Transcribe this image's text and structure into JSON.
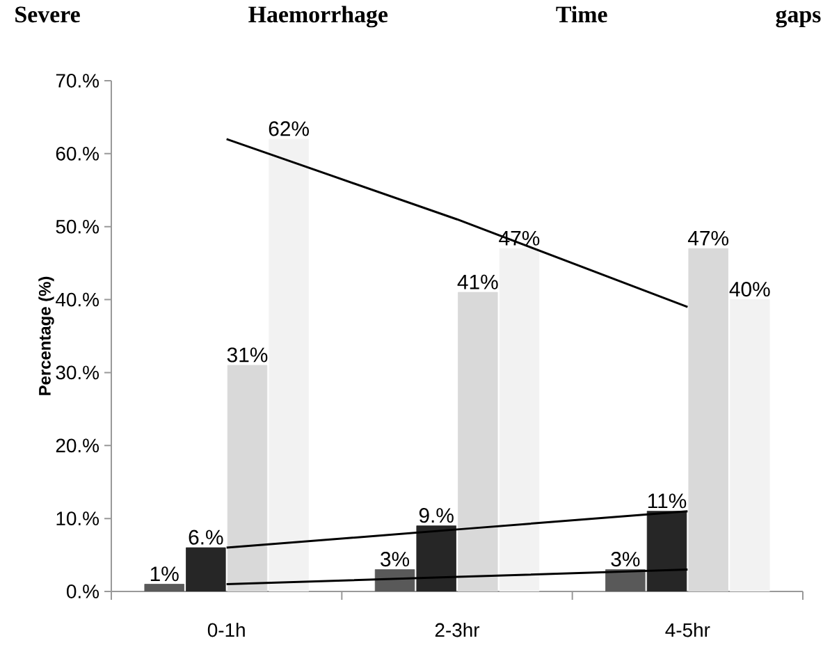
{
  "chart_data": {
    "type": "bar",
    "title": "Severe Haemorrhage Time gaps",
    "ylabel": "Percentage (%)",
    "categories": [
      "0-1h",
      "2-3hr",
      "4-5hr"
    ],
    "series": [
      {
        "color": "#595959",
        "values": [
          1,
          3,
          3
        ],
        "value_labels": [
          "1%",
          "3%",
          "3%"
        ]
      },
      {
        "color": "#262626",
        "values": [
          6,
          9,
          11
        ],
        "value_labels": [
          "6.%",
          "9.%",
          "11%"
        ]
      },
      {
        "color": "#d9d9d9",
        "values": [
          31,
          41,
          47
        ],
        "value_labels": [
          "31%",
          "41%",
          "47%"
        ]
      },
      {
        "color": "#f2f2f2",
        "values": [
          62,
          47,
          40
        ],
        "value_labels": [
          "62%",
          "47%",
          "40%"
        ]
      },
      {
        "type": "line",
        "color": "#000000",
        "values": [
          62,
          51,
          39
        ]
      },
      {
        "type": "line",
        "color": "#000000",
        "values": [
          6,
          8.5,
          11
        ]
      },
      {
        "type": "line",
        "color": "#000000",
        "values": [
          1,
          2,
          3
        ]
      }
    ],
    "ylim": [
      0,
      70
    ],
    "yticks": [
      {
        "value": 0,
        "label": "0.%"
      },
      {
        "value": 10,
        "label": "10.%"
      },
      {
        "value": 20,
        "label": "20.%"
      },
      {
        "value": 30,
        "label": "30.%"
      },
      {
        "value": 40,
        "label": "40.%"
      },
      {
        "value": 50,
        "label": "50.%"
      },
      {
        "value": 60,
        "label": "60.%"
      },
      {
        "value": 70,
        "label": "70.%"
      }
    ],
    "grid": false
  }
}
